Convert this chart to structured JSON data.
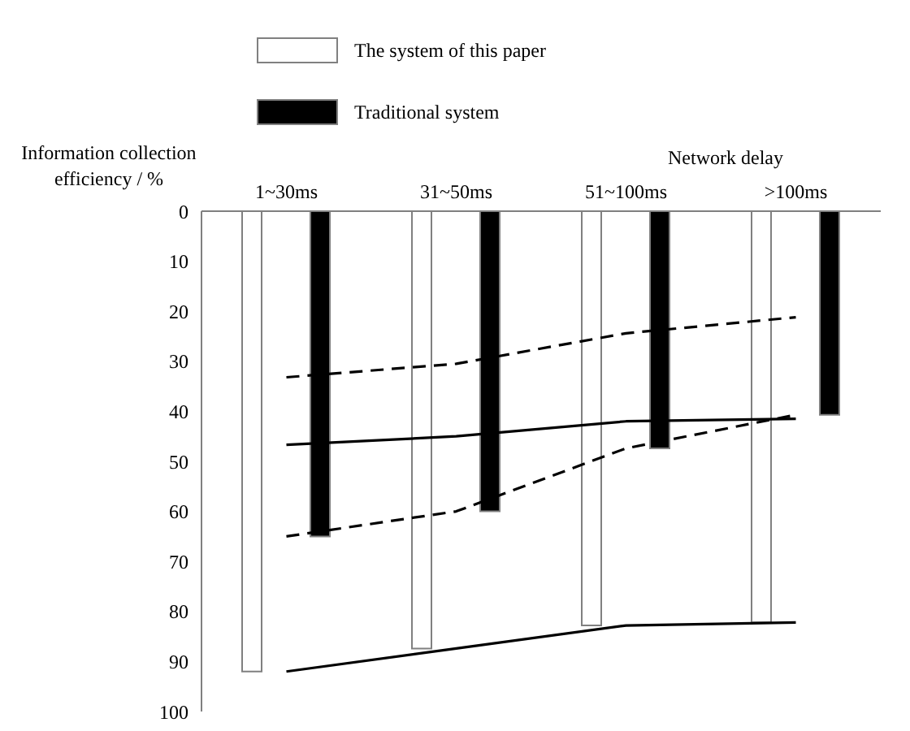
{
  "chart_data": {
    "type": "bar",
    "xlabel": "Network delay",
    "ylabel": "Information collection efficiency / %",
    "categories": [
      "1~30ms",
      "31~50ms",
      "51~100ms",
      ">100ms"
    ],
    "series": [
      {
        "name": "The system of this paper",
        "color": "#ffffff",
        "values": [
          92,
          87.4,
          82.8,
          82.2
        ]
      },
      {
        "name": "Traditional system",
        "color": "#000000",
        "values": [
          65,
          60,
          47.4,
          40.7
        ]
      },
      {
        "type": "line",
        "color": "#000000",
        "line_style": "solid",
        "values": [
          46.7,
          45,
          42,
          41.5
        ]
      },
      {
        "type": "line",
        "color": "#000000",
        "line_style": "solid",
        "values": [
          92,
          87.4,
          82.8,
          82.2
        ]
      },
      {
        "type": "line",
        "color": "#000000",
        "line_style": "dashed",
        "values": [
          33.2,
          30.5,
          24.4,
          21.2
        ]
      },
      {
        "type": "line",
        "color": "#000000",
        "line_style": "dashed",
        "values": [
          65,
          60,
          47.4,
          40.7
        ]
      }
    ],
    "ylim": [
      100,
      0
    ],
    "yticks": [
      0,
      10,
      20,
      30,
      40,
      50,
      60,
      70,
      80,
      90,
      100
    ],
    "legend": "top left",
    "marker": "none"
  }
}
